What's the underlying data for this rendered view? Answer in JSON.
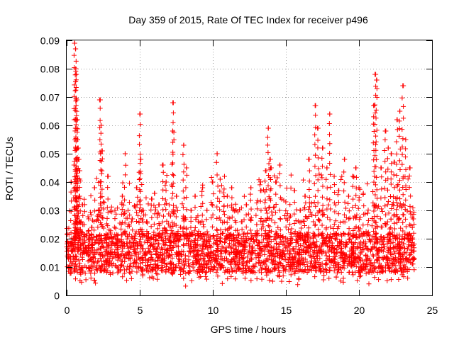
{
  "chart_data": {
    "type": "scatter",
    "title": "Day 359 of 2015, Rate Of TEC Index for receiver p496",
    "xlabel": "GPS time / hours",
    "ylabel": "ROTI / TECUs",
    "xlim": [
      0,
      25
    ],
    "ylim": [
      0,
      0.09
    ],
    "xticks": [
      0,
      5,
      10,
      15,
      20,
      25
    ],
    "xtick_labels": [
      "0",
      "5",
      "10",
      "15",
      "20",
      "25"
    ],
    "yticks": [
      0,
      0.01,
      0.02,
      0.03,
      0.04,
      0.05,
      0.06,
      0.07,
      0.08,
      0.09
    ],
    "ytick_labels": [
      "0",
      "0.01",
      "0.02",
      "0.03",
      "0.04",
      "0.05",
      "0.06",
      "0.07",
      "0.08",
      "0.09"
    ],
    "grid": true,
    "marker": "+",
    "color": "#ff0000",
    "data_range_hours": [
      0.0,
      23.8
    ],
    "typical_band": [
      0.008,
      0.022
    ],
    "series": [
      {
        "name": "ROTI",
        "x": [
          0.12,
          0.3,
          0.5,
          0.55,
          0.6,
          0.62,
          0.65,
          0.7,
          0.72,
          0.75,
          0.8,
          0.85,
          0.9,
          1.0,
          1.1,
          1.2,
          1.35,
          1.5,
          1.7,
          1.9,
          2.1,
          2.3,
          2.35,
          2.4,
          2.5,
          2.8,
          3.0,
          3.3,
          3.5,
          3.8,
          4.0,
          4.2,
          4.5,
          4.8,
          5.0,
          5.05,
          5.2,
          5.5,
          5.8,
          6.0,
          6.3,
          6.6,
          6.8,
          7.1,
          7.25,
          7.3,
          7.5,
          7.8,
          8.0,
          8.2,
          8.5,
          8.8,
          9.0,
          9.3,
          9.6,
          10.0,
          10.3,
          10.5,
          10.8,
          11.0,
          11.3,
          11.6,
          12.0,
          12.3,
          12.6,
          13.0,
          13.3,
          13.6,
          13.8,
          13.9,
          14.0,
          14.3,
          14.6,
          15.0,
          15.3,
          15.6,
          16.0,
          16.3,
          16.6,
          17.0,
          17.2,
          17.5,
          17.8,
          18.0,
          18.3,
          18.6,
          19.0,
          19.3,
          19.6,
          19.8,
          20.0,
          20.3,
          20.6,
          21.0,
          21.1,
          21.2,
          21.5,
          21.8,
          22.0,
          22.2,
          22.4,
          22.6,
          22.8,
          23.0,
          23.2,
          23.5,
          23.7
        ],
        "y": [
          0.013,
          0.04,
          0.046,
          0.089,
          0.087,
          0.08,
          0.078,
          0.069,
          0.062,
          0.052,
          0.048,
          0.035,
          0.044,
          0.026,
          0.032,
          0.025,
          0.021,
          0.027,
          0.024,
          0.038,
          0.028,
          0.069,
          0.06,
          0.051,
          0.033,
          0.042,
          0.022,
          0.03,
          0.02,
          0.035,
          0.05,
          0.03,
          0.027,
          0.038,
          0.064,
          0.048,
          0.03,
          0.026,
          0.034,
          0.036,
          0.032,
          0.046,
          0.04,
          0.028,
          0.058,
          0.068,
          0.035,
          0.024,
          0.053,
          0.045,
          0.03,
          0.035,
          0.026,
          0.038,
          0.03,
          0.04,
          0.05,
          0.041,
          0.042,
          0.035,
          0.038,
          0.03,
          0.026,
          0.032,
          0.038,
          0.025,
          0.037,
          0.044,
          0.059,
          0.048,
          0.045,
          0.04,
          0.046,
          0.033,
          0.028,
          0.037,
          0.03,
          0.035,
          0.048,
          0.067,
          0.059,
          0.052,
          0.045,
          0.064,
          0.042,
          0.037,
          0.048,
          0.035,
          0.042,
          0.045,
          0.038,
          0.036,
          0.029,
          0.067,
          0.078,
          0.076,
          0.045,
          0.058,
          0.052,
          0.05,
          0.047,
          0.062,
          0.065,
          0.074,
          0.055,
          0.045,
          0.027
        ]
      }
    ]
  }
}
